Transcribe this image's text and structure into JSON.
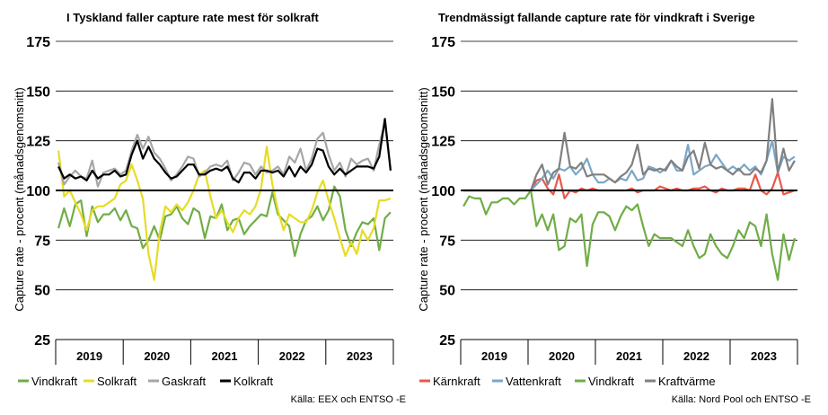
{
  "chart_data": [
    {
      "type": "line",
      "title": "I Tyskland faller capture rate mest för solkraft",
      "ylabel": "Capture rate - procent (månadsgenomsnitt)",
      "ylim": [
        25,
        175
      ],
      "yticks": [
        25,
        50,
        75,
        100,
        125,
        150,
        175
      ],
      "x_categories": [
        "2019",
        "2020",
        "2021",
        "2022",
        "2023"
      ],
      "x": [
        "2019-01",
        "2019-02",
        "2019-03",
        "2019-04",
        "2019-05",
        "2019-06",
        "2019-07",
        "2019-08",
        "2019-09",
        "2019-10",
        "2019-11",
        "2019-12",
        "2020-01",
        "2020-02",
        "2020-03",
        "2020-04",
        "2020-05",
        "2020-06",
        "2020-07",
        "2020-08",
        "2020-09",
        "2020-10",
        "2020-11",
        "2020-12",
        "2021-01",
        "2021-02",
        "2021-03",
        "2021-04",
        "2021-05",
        "2021-06",
        "2021-07",
        "2021-08",
        "2021-09",
        "2021-10",
        "2021-11",
        "2021-12",
        "2022-01",
        "2022-02",
        "2022-03",
        "2022-04",
        "2022-05",
        "2022-06",
        "2022-07",
        "2022-08",
        "2022-09",
        "2022-10",
        "2022-11",
        "2022-12",
        "2023-01",
        "2023-02",
        "2023-03",
        "2023-04",
        "2023-05",
        "2023-06",
        "2023-07",
        "2023-08",
        "2023-09",
        "2023-10",
        "2023-11",
        "2023-12"
      ],
      "reference_line": 100,
      "grid": "horizontal",
      "legend_position": "bottom",
      "source": "Källa: EEX och ENTSO -E",
      "series": [
        {
          "name": "Vindkraft",
          "color": "#70AD47",
          "values": [
            81,
            91,
            82,
            93,
            95,
            77,
            92,
            84,
            88,
            88,
            91,
            85,
            90,
            82,
            81,
            71,
            75,
            82,
            75,
            87,
            88,
            92,
            86,
            83,
            91,
            89,
            76,
            87,
            86,
            93,
            80,
            85,
            86,
            78,
            82,
            85,
            88,
            87,
            99,
            88,
            85,
            82,
            67,
            78,
            85,
            87,
            92,
            85,
            90,
            102,
            97,
            80,
            72,
            79,
            84,
            83,
            86,
            70,
            86,
            89
          ]
        },
        {
          "name": "Solkraft",
          "color": "#E6DC25",
          "values": [
            120,
            97,
            100,
            94,
            88,
            80,
            90,
            92,
            92,
            94,
            96,
            103,
            105,
            113,
            105,
            96,
            68,
            55,
            79,
            92,
            89,
            93,
            90,
            94,
            100,
            108,
            110,
            97,
            86,
            90,
            84,
            79,
            86,
            90,
            88,
            92,
            101,
            122,
            103,
            90,
            80,
            88,
            86,
            84,
            84,
            90,
            99,
            105,
            95,
            86,
            76,
            67,
            74,
            68,
            80,
            75,
            81,
            95,
            95,
            96
          ]
        },
        {
          "name": "Gaskraft",
          "color": "#A6A6A6",
          "values": [
            114,
            103,
            107,
            110,
            107,
            106,
            115,
            102,
            109,
            110,
            111,
            108,
            110,
            120,
            128,
            121,
            127,
            119,
            116,
            111,
            105,
            108,
            112,
            117,
            116,
            107,
            109,
            112,
            113,
            112,
            115,
            105,
            109,
            114,
            113,
            108,
            112,
            109,
            110,
            112,
            108,
            117,
            114,
            121,
            110,
            116,
            126,
            129,
            118,
            110,
            114,
            107,
            116,
            113,
            115,
            116,
            110,
            123,
            134,
            111
          ]
        },
        {
          "name": "Kolkraft",
          "color": "#000000",
          "values": [
            112,
            106,
            108,
            106,
            107,
            105,
            110,
            106,
            108,
            108,
            110,
            107,
            108,
            118,
            125,
            116,
            122,
            116,
            113,
            109,
            106,
            107,
            110,
            113,
            113,
            108,
            108,
            110,
            111,
            110,
            112,
            106,
            104,
            109,
            109,
            106,
            110,
            110,
            109,
            110,
            107,
            112,
            107,
            112,
            109,
            113,
            121,
            120,
            112,
            108,
            111,
            108,
            110,
            112,
            112,
            112,
            111,
            117,
            136,
            110
          ]
        }
      ]
    },
    {
      "type": "line",
      "title": "Trendmässigt fallande capture rate för vindkraft i Sverige",
      "ylabel": "Capture rate - procent (månadsgenomsnitt)",
      "ylim": [
        25,
        175
      ],
      "yticks": [
        25,
        50,
        75,
        100,
        125,
        150,
        175
      ],
      "x_categories": [
        "2019",
        "2020",
        "2021",
        "2022",
        "2023"
      ],
      "x": [
        "2019-01",
        "2019-02",
        "2019-03",
        "2019-04",
        "2019-05",
        "2019-06",
        "2019-07",
        "2019-08",
        "2019-09",
        "2019-10",
        "2019-11",
        "2019-12",
        "2020-01",
        "2020-02",
        "2020-03",
        "2020-04",
        "2020-05",
        "2020-06",
        "2020-07",
        "2020-08",
        "2020-09",
        "2020-10",
        "2020-11",
        "2020-12",
        "2021-01",
        "2021-02",
        "2021-03",
        "2021-04",
        "2021-05",
        "2021-06",
        "2021-07",
        "2021-08",
        "2021-09",
        "2021-10",
        "2021-11",
        "2021-12",
        "2022-01",
        "2022-02",
        "2022-03",
        "2022-04",
        "2022-05",
        "2022-06",
        "2022-07",
        "2022-08",
        "2022-09",
        "2022-10",
        "2022-11",
        "2022-12",
        "2023-01",
        "2023-02",
        "2023-03",
        "2023-04",
        "2023-05",
        "2023-06",
        "2023-07",
        "2023-08",
        "2023-09",
        "2023-10",
        "2023-11",
        "2023-12"
      ],
      "reference_line": 100,
      "grid": "horizontal",
      "legend_position": "bottom",
      "source": "Källa: Nord Pool och ENTSO -E",
      "series": [
        {
          "name": "Kärnkraft",
          "color": "#E8584A",
          "values": [
            100,
            100,
            100,
            100,
            100,
            100,
            100,
            100,
            100,
            100,
            100,
            100,
            100,
            105,
            106,
            101,
            98,
            108,
            96,
            100,
            99,
            101,
            100,
            101,
            100,
            100,
            100,
            100,
            100,
            100,
            101,
            99,
            100,
            100,
            100,
            102,
            101,
            100,
            101,
            100,
            100,
            101,
            101,
            102,
            100,
            99,
            101,
            100,
            100,
            101,
            101,
            100,
            108,
            100,
            98,
            101,
            109,
            98,
            99,
            100
          ]
        },
        {
          "name": "Vattenkraft",
          "color": "#7BA7C7",
          "values": [
            100,
            100,
            100,
            100,
            100,
            100,
            100,
            100,
            100,
            100,
            100,
            100,
            100,
            103,
            106,
            110,
            106,
            111,
            110,
            112,
            108,
            111,
            116,
            108,
            104,
            104,
            106,
            104,
            106,
            105,
            110,
            105,
            106,
            112,
            111,
            109,
            111,
            115,
            110,
            110,
            123,
            108,
            110,
            112,
            113,
            118,
            114,
            110,
            112,
            110,
            113,
            110,
            112,
            108,
            115,
            125,
            109,
            117,
            115,
            117
          ]
        },
        {
          "name": "Vindkraft",
          "color": "#70AD47",
          "values": [
            92,
            97,
            96,
            96,
            88,
            94,
            94,
            96,
            96,
            93,
            96,
            96,
            100,
            82,
            88,
            80,
            88,
            70,
            72,
            86,
            84,
            88,
            62,
            83,
            89,
            89,
            87,
            80,
            87,
            92,
            90,
            93,
            82,
            72,
            78,
            76,
            76,
            76,
            74,
            72,
            80,
            72,
            66,
            68,
            78,
            72,
            68,
            66,
            72,
            80,
            76,
            84,
            82,
            72,
            88,
            68,
            55,
            78,
            65,
            76
          ]
        },
        {
          "name": "Kraftvärme",
          "color": "#808080",
          "values": [
            100,
            100,
            100,
            100,
            100,
            100,
            100,
            100,
            100,
            100,
            100,
            100,
            100,
            108,
            113,
            103,
            109,
            111,
            129,
            112,
            111,
            114,
            107,
            108,
            108,
            108,
            106,
            104,
            107,
            109,
            113,
            123,
            108,
            111,
            110,
            111,
            110,
            115,
            112,
            110,
            117,
            120,
            111,
            124,
            113,
            111,
            112,
            110,
            108,
            111,
            108,
            108,
            111,
            109,
            115,
            146,
            109,
            121,
            110,
            115
          ]
        }
      ]
    }
  ]
}
